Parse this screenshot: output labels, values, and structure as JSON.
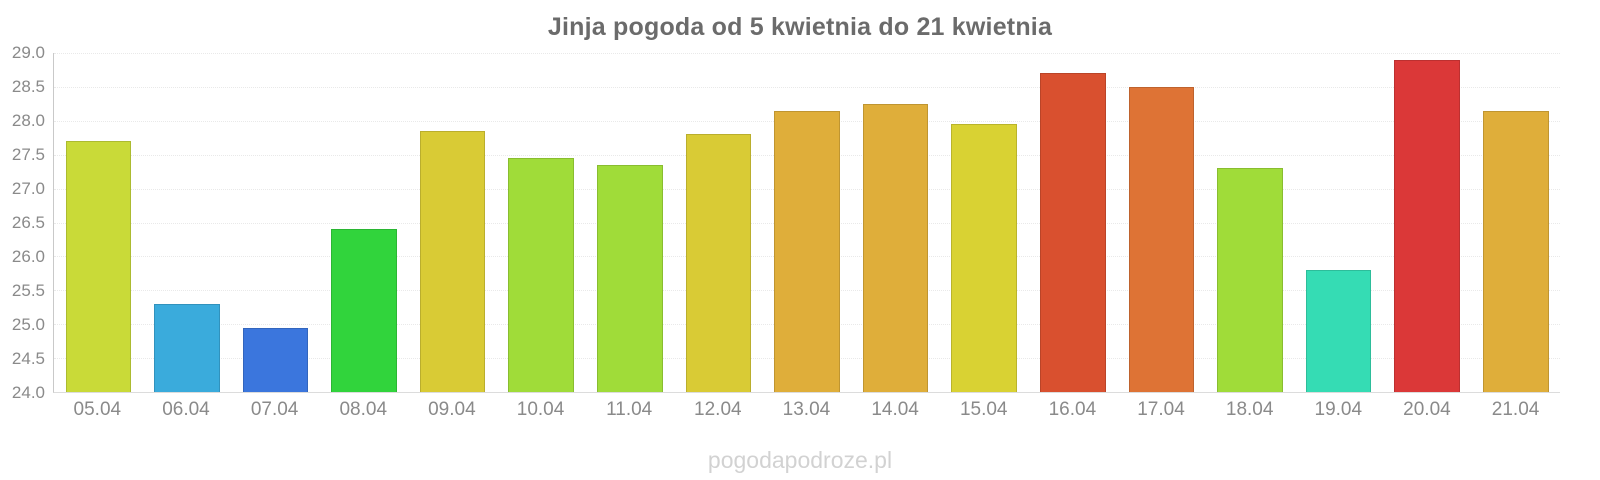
{
  "page": {
    "watermark": "pogodapodroze.pl"
  },
  "chart_data": {
    "type": "bar",
    "title": "Jinja pogoda od 5 kwietnia do 21 kwietnia",
    "categories": [
      "05.04",
      "06.04",
      "07.04",
      "08.04",
      "09.04",
      "10.04",
      "11.04",
      "12.04",
      "13.04",
      "14.04",
      "15.04",
      "16.04",
      "17.04",
      "18.04",
      "19.04",
      "20.04",
      "21.04"
    ],
    "values": [
      27.7,
      25.3,
      24.95,
      26.4,
      27.85,
      27.45,
      27.35,
      27.8,
      28.15,
      28.25,
      27.95,
      28.7,
      28.5,
      27.3,
      25.8,
      28.9,
      28.15
    ],
    "bar_colors": [
      "#c9da38",
      "#3aabdc",
      "#3b76dd",
      "#31d43c",
      "#d9cb35",
      "#a0dc39",
      "#a0dc39",
      "#d9cb35",
      "#dfae3a",
      "#dfae3a",
      "#d9d233",
      "#d9502f",
      "#de7335",
      "#a0dc39",
      "#35dcb4",
      "#db3838",
      "#dfae3a"
    ],
    "xlabel": "",
    "ylabel": "",
    "ylim": [
      24.0,
      29.0
    ],
    "ytick_step": 0.5,
    "yticks": [
      "29.0",
      "28.5",
      "28.0",
      "27.5",
      "27.0",
      "26.5",
      "26.0",
      "25.5",
      "25.0",
      "24.5",
      "24.0"
    ],
    "grid": "horizontal dotted, very faint",
    "legend": "none",
    "watermark": "pogodapodroze.pl"
  }
}
